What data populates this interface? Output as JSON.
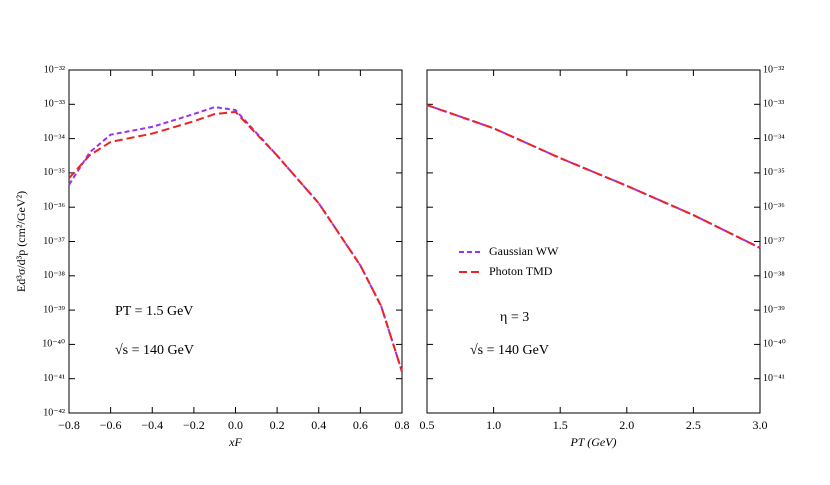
{
  "chart_data": [
    {
      "type": "line",
      "xlabel": "xF",
      "ylabel": "Ed³σ/d³p (cm²/GeV²)",
      "x": [
        -0.8,
        -0.7,
        -0.6,
        -0.4,
        -0.2,
        -0.1,
        0,
        0.2,
        0.4,
        0.6,
        0.7,
        0.8
      ],
      "series": [
        {
          "name": "Gaussian WW",
          "color": "#9933ee",
          "values": [
            4.5e-36,
            4e-35,
            1.3e-34,
            2.2e-34,
            5.2e-34,
            8.3e-34,
            6.8e-34,
            3.2e-35,
            1.3e-36,
            2e-38,
            1.3e-39,
            1.6e-41
          ]
        },
        {
          "name": "Photon TMD",
          "color": "#ee2222",
          "values": [
            7e-36,
            3.3e-35,
            8e-35,
            1.4e-34,
            3.2e-34,
            5.2e-34,
            6e-34,
            3.2e-35,
            1.3e-36,
            2e-38,
            1.3e-39,
            1.6e-41
          ]
        }
      ],
      "xlim": [
        -0.8,
        0.8
      ],
      "xticks": [
        {
          "value": -0.8,
          "label": "−0.8"
        },
        {
          "value": -0.6,
          "label": "−0.6"
        },
        {
          "value": -0.4,
          "label": "−0.4"
        },
        {
          "value": -0.2,
          "label": "−0.2"
        },
        {
          "value": 0,
          "label": "0.0"
        },
        0.2,
        0.4,
        0.6,
        0.8
      ],
      "ylim": [
        1e-42,
        1e-32
      ],
      "log_y": true,
      "yticks": [
        {
          "value": 1e-42,
          "label": "10⁻⁴²"
        },
        {
          "value": 1e-41,
          "label": "10⁻⁴¹"
        },
        {
          "value": 1e-40,
          "label": "10⁻⁴⁰"
        },
        {
          "value": 1e-39,
          "label": "10⁻³⁹"
        },
        {
          "value": 1e-38,
          "label": "10⁻³⁸"
        },
        {
          "value": 1e-37,
          "label": "10⁻³⁷"
        },
        {
          "value": 1e-36,
          "label": "10⁻³⁶"
        },
        {
          "value": 1e-35,
          "label": "10⁻³⁵"
        },
        {
          "value": 1e-34,
          "label": "10⁻³⁴"
        },
        {
          "value": 1e-33,
          "label": "10⁻³³"
        },
        {
          "value": 1e-32,
          "label": "10⁻³²"
        }
      ],
      "annotations": [
        "PT = 1.5 GeV",
        "√s = 140 GeV"
      ]
    },
    {
      "type": "line",
      "xlabel": "PT (GeV)",
      "x": [
        0.5,
        1.0,
        1.5,
        2.0,
        2.5,
        3.0
      ],
      "series": [
        {
          "name": "Gaussian WW",
          "color": "#9933ee",
          "values": [
            9.5e-34,
            2e-34,
            2.7e-35,
            4.2e-36,
            5.9e-37,
            6.5e-38
          ]
        },
        {
          "name": "Photon TMD",
          "color": "#ee2222",
          "values": [
            9.5e-34,
            2e-34,
            2.7e-35,
            4.2e-36,
            5.9e-37,
            6.5e-38
          ]
        }
      ],
      "xlim": [
        0.5,
        3.0
      ],
      "xticks": [
        0.5,
        {
          "value": 1.0,
          "label": "1.0"
        },
        1.5,
        {
          "value": 2.0,
          "label": "2.0"
        },
        2.5,
        {
          "value": 3.0,
          "label": "3.0"
        }
      ],
      "ylim": [
        1e-42,
        1e-32
      ],
      "log_y": true,
      "yticks": [
        {
          "value": 1e-41,
          "label": "10⁻⁴¹"
        },
        {
          "value": 1e-40,
          "label": "10⁻⁴⁰"
        },
        {
          "value": 1e-39,
          "label": "10⁻³⁹"
        },
        {
          "value": 1e-38,
          "label": "10⁻³⁸"
        },
        {
          "value": 1e-37,
          "label": "10⁻³⁷"
        },
        {
          "value": 1e-36,
          "label": "10⁻³⁶"
        },
        {
          "value": 1e-35,
          "label": "10⁻³⁵"
        },
        {
          "value": 1e-34,
          "label": "10⁻³⁴"
        },
        {
          "value": 1e-33,
          "label": "10⁻³³"
        },
        {
          "value": 1e-32,
          "label": "10⁻³²"
        }
      ],
      "legend": "center-left",
      "annotations": [
        "η = 3",
        "√s = 140 GeV"
      ]
    }
  ]
}
